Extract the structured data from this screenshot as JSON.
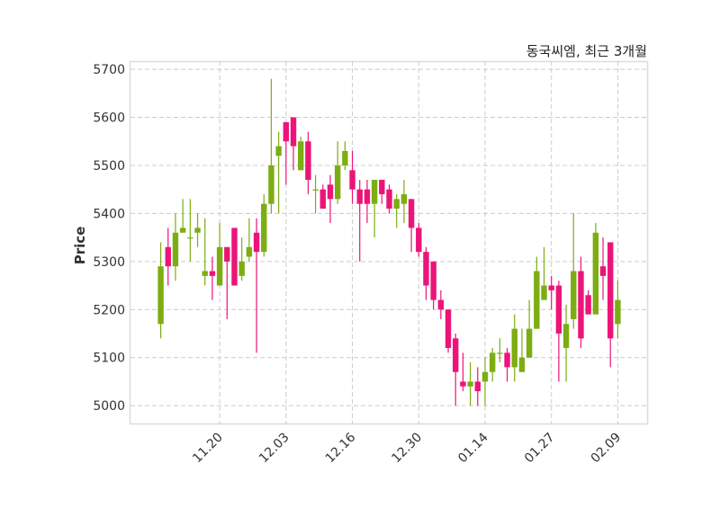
{
  "chart_data": {
    "type": "candlestick",
    "title": "동국씨엠, 최근 3개월",
    "xlabel": "",
    "ylabel": "Price",
    "ylim": [
      4961,
      5717
    ],
    "grid": true,
    "colors": {
      "up": "#7cad12",
      "down": "#ec1479"
    },
    "yticks": [
      5000,
      5100,
      5200,
      5300,
      5400,
      5500,
      5600,
      5700
    ],
    "xticks": [
      {
        "index": 8,
        "label": "11.20"
      },
      {
        "index": 17,
        "label": "12.03"
      },
      {
        "index": 26,
        "label": "12.16"
      },
      {
        "index": 35,
        "label": "12.30"
      },
      {
        "index": 44,
        "label": "01.14"
      },
      {
        "index": 53,
        "label": "01.27"
      },
      {
        "index": 62,
        "label": "02.09"
      }
    ],
    "ohlc": [
      [
        5170,
        5340,
        5140,
        5290
      ],
      [
        5330,
        5370,
        5250,
        5290
      ],
      [
        5290,
        5400,
        5260,
        5360
      ],
      [
        5360,
        5430,
        5360,
        5370
      ],
      [
        5350,
        5430,
        5300,
        5350
      ],
      [
        5360,
        5400,
        5330,
        5370
      ],
      [
        5270,
        5390,
        5250,
        5280
      ],
      [
        5280,
        5310,
        5220,
        5270
      ],
      [
        5250,
        5380,
        5250,
        5330
      ],
      [
        5330,
        5330,
        5180,
        5300
      ],
      [
        5370,
        5370,
        5250,
        5250
      ],
      [
        5270,
        5350,
        5260,
        5300
      ],
      [
        5310,
        5390,
        5300,
        5330
      ],
      [
        5360,
        5390,
        5110,
        5320
      ],
      [
        5320,
        5440,
        5310,
        5420
      ],
      [
        5420,
        5680,
        5400,
        5500
      ],
      [
        5520,
        5570,
        5400,
        5540
      ],
      [
        5590,
        5590,
        5460,
        5550
      ],
      [
        5600,
        5600,
        5490,
        5540
      ],
      [
        5490,
        5560,
        5490,
        5550
      ],
      [
        5550,
        5570,
        5440,
        5470
      ],
      [
        5450,
        5480,
        5400,
        5450
      ],
      [
        5450,
        5460,
        5410,
        5410
      ],
      [
        5460,
        5480,
        5380,
        5430
      ],
      [
        5430,
        5550,
        5420,
        5500
      ],
      [
        5500,
        5550,
        5490,
        5530
      ],
      [
        5490,
        5530,
        5420,
        5450
      ],
      [
        5450,
        5470,
        5300,
        5420
      ],
      [
        5450,
        5470,
        5380,
        5420
      ],
      [
        5420,
        5470,
        5350,
        5470
      ],
      [
        5470,
        5470,
        5420,
        5440
      ],
      [
        5450,
        5460,
        5400,
        5410
      ],
      [
        5410,
        5440,
        5370,
        5430
      ],
      [
        5420,
        5470,
        5380,
        5440
      ],
      [
        5430,
        5430,
        5320,
        5370
      ],
      [
        5370,
        5380,
        5310,
        5320
      ],
      [
        5320,
        5330,
        5220,
        5250
      ],
      [
        5300,
        5300,
        5200,
        5220
      ],
      [
        5220,
        5240,
        5180,
        5200
      ],
      [
        5200,
        5200,
        5110,
        5120
      ],
      [
        5140,
        5150,
        5000,
        5070
      ],
      [
        5050,
        5110,
        5030,
        5040
      ],
      [
        5040,
        5090,
        5000,
        5050
      ],
      [
        5050,
        5080,
        5000,
        5030
      ],
      [
        5050,
        5100,
        5000,
        5070
      ],
      [
        5070,
        5120,
        5050,
        5110
      ],
      [
        5110,
        5140,
        5090,
        5110
      ],
      [
        5110,
        5120,
        5050,
        5080
      ],
      [
        5080,
        5190,
        5050,
        5160
      ],
      [
        5070,
        5160,
        5070,
        5100
      ],
      [
        5100,
        5220,
        5100,
        5160
      ],
      [
        5160,
        5310,
        5160,
        5280
      ],
      [
        5220,
        5330,
        5220,
        5250
      ],
      [
        5250,
        5270,
        5200,
        5240
      ],
      [
        5250,
        5260,
        5050,
        5150
      ],
      [
        5120,
        5210,
        5050,
        5170
      ],
      [
        5180,
        5400,
        5160,
        5280
      ],
      [
        5280,
        5310,
        5120,
        5140
      ],
      [
        5230,
        5240,
        5190,
        5190
      ],
      [
        5190,
        5380,
        5190,
        5360
      ],
      [
        5290,
        5350,
        5220,
        5270
      ],
      [
        5340,
        5340,
        5080,
        5140
      ],
      [
        5170,
        5260,
        5140,
        5220
      ]
    ]
  }
}
